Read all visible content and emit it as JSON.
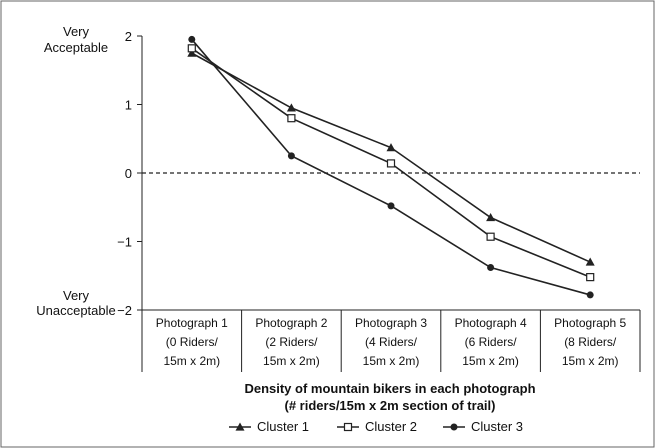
{
  "chart_data": {
    "type": "line",
    "categories": [
      [
        "Photograph 1",
        "(0 Riders/",
        "15m x 2m)"
      ],
      [
        "Photograph 2",
        "(2 Riders/",
        "15m x 2m)"
      ],
      [
        "Photograph 3",
        "(4 Riders/",
        "15m x 2m)"
      ],
      [
        "Photograph 4",
        "(6 Riders/",
        "15m x 2m)"
      ],
      [
        "Photograph 5",
        "(8 Riders/",
        "15m x 2m)"
      ]
    ],
    "xlabel": [
      "Density of mountain bikers in each photograph",
      "(# riders/15m x 2m section of trail)"
    ],
    "ylabel_top": [
      "Very",
      "Acceptable"
    ],
    "ylabel_bottom": [
      "Very",
      "Unacceptable"
    ],
    "ylim": [
      -2,
      2
    ],
    "yticks": [
      {
        "value": 2,
        "label": "2"
      },
      {
        "value": 1,
        "label": "1"
      },
      {
        "value": 0,
        "label": "0"
      },
      {
        "value": -1,
        "label": "−1"
      },
      {
        "value": -2,
        "label": "−2"
      }
    ],
    "reference_line": {
      "value": 0,
      "style": "dashed"
    },
    "legend_position": "bottom",
    "series": [
      {
        "name": "Cluster 1",
        "marker": "triangle",
        "values": [
          1.75,
          0.95,
          0.37,
          -0.65,
          -1.3
        ]
      },
      {
        "name": "Cluster 2",
        "marker": "open-square",
        "values": [
          1.82,
          0.8,
          0.14,
          -0.93,
          -1.52
        ]
      },
      {
        "name": "Cluster 3",
        "marker": "circle",
        "values": [
          1.95,
          0.25,
          -0.48,
          -1.38,
          -1.78
        ]
      }
    ],
    "colors": {
      "line": "#222222",
      "frame": "#666666",
      "background": "#ffffff"
    }
  }
}
